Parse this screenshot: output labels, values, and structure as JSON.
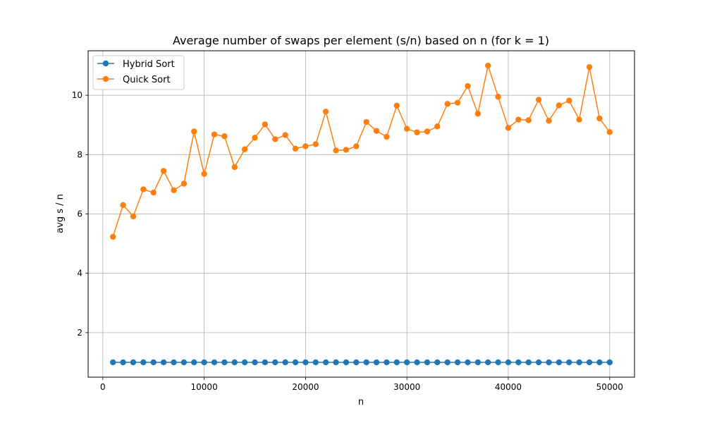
{
  "chart_data": {
    "type": "line",
    "title": "Average number of swaps per element (s/n) based on n (for k = 1)",
    "xlabel": "n",
    "ylabel": "avg s / n",
    "xlim": [
      -1450,
      52450
    ],
    "ylim": [
      0.5,
      11.5
    ],
    "xticks": [
      0,
      10000,
      20000,
      30000,
      40000,
      50000
    ],
    "yticks": [
      2,
      4,
      6,
      8,
      10
    ],
    "grid": true,
    "legend": "top-left",
    "x": [
      1000,
      2000,
      3000,
      4000,
      5000,
      6000,
      7000,
      8000,
      9000,
      10000,
      11000,
      12000,
      13000,
      14000,
      15000,
      16000,
      17000,
      18000,
      19000,
      20000,
      21000,
      22000,
      23000,
      24000,
      25000,
      26000,
      27000,
      28000,
      29000,
      30000,
      31000,
      32000,
      33000,
      34000,
      35000,
      36000,
      37000,
      38000,
      39000,
      40000,
      41000,
      42000,
      43000,
      44000,
      45000,
      46000,
      47000,
      48000,
      49000,
      50000
    ],
    "series": [
      {
        "name": "Hybrid Sort",
        "color": "#1f77b4",
        "values": [
          1,
          1,
          1,
          1,
          1,
          1,
          1,
          1,
          1,
          1,
          1,
          1,
          1,
          1,
          1,
          1,
          1,
          1,
          1,
          1,
          1,
          1,
          1,
          1,
          1,
          1,
          1,
          1,
          1,
          1,
          1,
          1,
          1,
          1,
          1,
          1,
          1,
          1,
          1,
          1,
          1,
          1,
          1,
          1,
          1,
          1,
          1,
          1,
          1,
          1
        ]
      },
      {
        "name": "Quick Sort",
        "color": "#ff7f0e",
        "values": [
          5.23,
          6.3,
          5.92,
          6.83,
          6.72,
          7.45,
          6.8,
          7.02,
          8.78,
          7.35,
          8.68,
          8.62,
          7.58,
          8.18,
          8.57,
          9.02,
          8.52,
          8.66,
          8.2,
          8.28,
          8.35,
          9.45,
          8.14,
          8.16,
          8.28,
          9.1,
          8.8,
          8.6,
          9.65,
          8.87,
          8.75,
          8.78,
          8.95,
          9.71,
          9.75,
          10.31,
          9.38,
          11.0,
          9.95,
          8.9,
          9.18,
          9.16,
          9.85,
          9.14,
          9.66,
          9.82,
          9.18,
          10.95,
          9.22,
          8.76
        ]
      }
    ]
  }
}
